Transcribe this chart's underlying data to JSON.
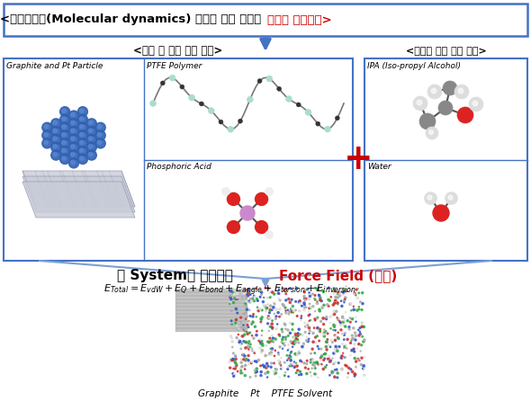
{
  "title_black": "<분자동역학(Molecular dynamics) 계산을 위해 필요한 ",
  "title_red": "시스템 구성요소>",
  "left_box_title": "<전극 층 주요 구성 요소>",
  "right_box_title": "<공정상 추가 구성 요소>",
  "graphite_label": "Graphite and Pt Particle",
  "ptfe_label": "PTFE Polymer",
  "phosphoric_label": "Phosphoric Acid",
  "ipa_label": "IPA (Iso-propyl Alcohol)",
  "water_label": "Water",
  "force_field_black": "현 System에 최적화된 ",
  "force_field_red": "Force Field (힘장)",
  "equation": "$E_{Total} = E_{vdW} + E_{Q} + E_{bond} + E_{angle} + E_{torsion} + E_{inversion}$",
  "bottom_label": "Graphite    Pt    PTFE Solvent",
  "bg_color": "#ffffff",
  "border_color": "#4472c4",
  "red_color": "#cc0000",
  "plus_color": "#cc0000",
  "arrow_color": "#4472c4",
  "diag_line_color": "#7b9fd4",
  "title_fontsize": 9.5,
  "label_fontsize": 6.5,
  "cell_label_fontsize": 6.5,
  "ff_fontsize": 11,
  "eq_fontsize": 8
}
